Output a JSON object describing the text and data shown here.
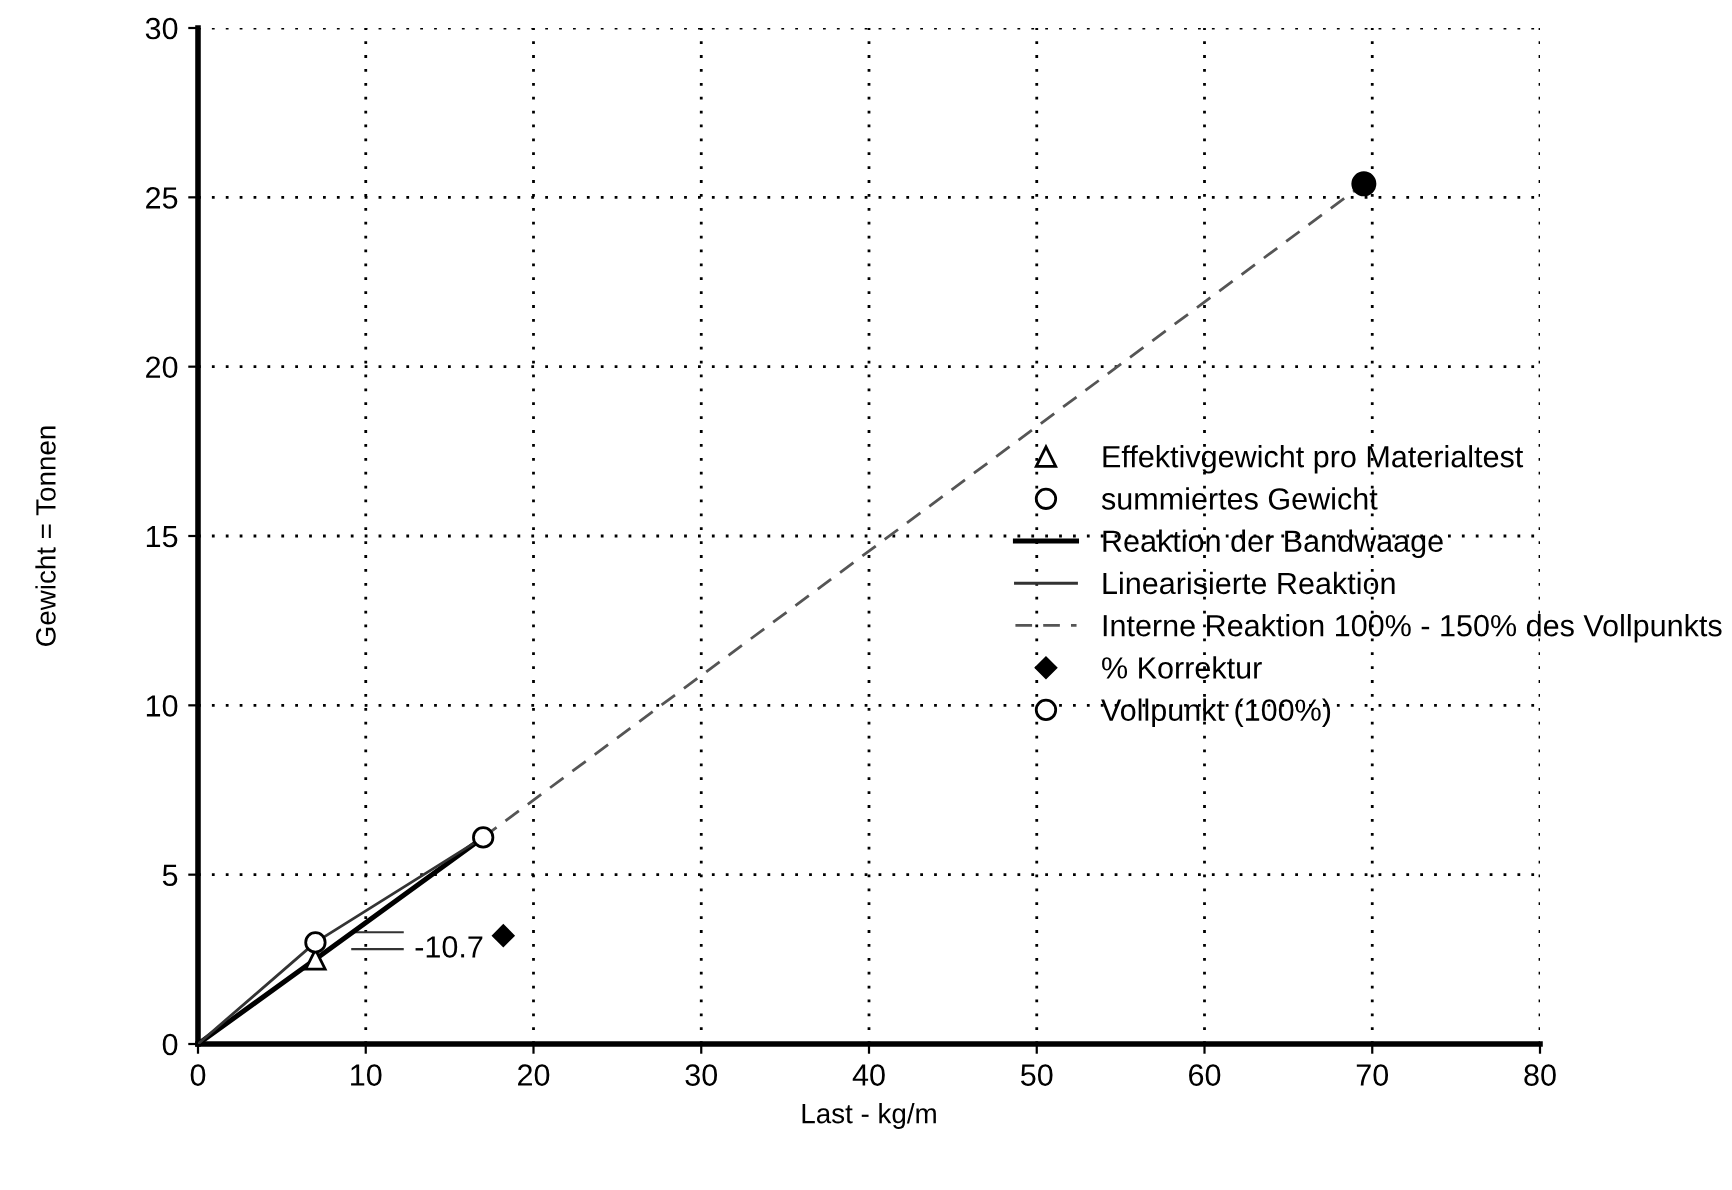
{
  "chart_data": {
    "type": "line",
    "xlabel": "Last - kg/m",
    "ylabel": "Gewicht = Tonnen",
    "xlim": [
      0,
      80
    ],
    "ylim": [
      0,
      30
    ],
    "xticks": [
      0,
      10,
      20,
      30,
      40,
      50,
      60,
      70,
      80
    ],
    "yticks": [
      0,
      5,
      10,
      15,
      20,
      25,
      30
    ],
    "grid": true,
    "legend": "right",
    "series": [
      {
        "name": "Effektivgewicht pro Materialtest",
        "type": "scatter",
        "marker": "triangle",
        "color": "#000000",
        "x": [
          7
        ],
        "values": [
          2.5
        ]
      },
      {
        "name": "summiertes Gewicht",
        "type": "scatter",
        "marker": "circle",
        "color": "#000000",
        "x": [
          7
        ],
        "values": [
          3.0
        ]
      },
      {
        "name": "Reaktion der Bandwaage",
        "line_style": "solid",
        "color": "#000000",
        "x": [
          0,
          7,
          17
        ],
        "values": [
          0,
          2.5,
          6.1
        ]
      },
      {
        "name": "Linearisierte Reaktion",
        "line_style": "solid",
        "color": "#333333",
        "x": [
          0,
          7,
          17
        ],
        "values": [
          0,
          3.0,
          6.1
        ]
      },
      {
        "name": "Interne Reaktion 100% - 150% des Vollpunkts",
        "line_style": "dashed",
        "color": "#555555",
        "x": [
          17,
          69.5
        ],
        "values": [
          6.1,
          25.4
        ]
      },
      {
        "name": "% Korrektur",
        "type": "scatter",
        "marker": "diamond",
        "color": "#000000",
        "x": [
          18.2
        ],
        "values": [
          3.2
        ]
      },
      {
        "name": "Vollpunkt (100%)",
        "type": "scatter",
        "marker": "circle",
        "color": "#000000",
        "x": [
          17
        ],
        "values": [
          6.1
        ]
      },
      {
        "type": "scatter",
        "marker": "circle",
        "color": "#000000",
        "x": [
          69.5
        ],
        "values": [
          25.4
        ]
      }
    ],
    "annotations": [
      "-10.7"
    ]
  }
}
